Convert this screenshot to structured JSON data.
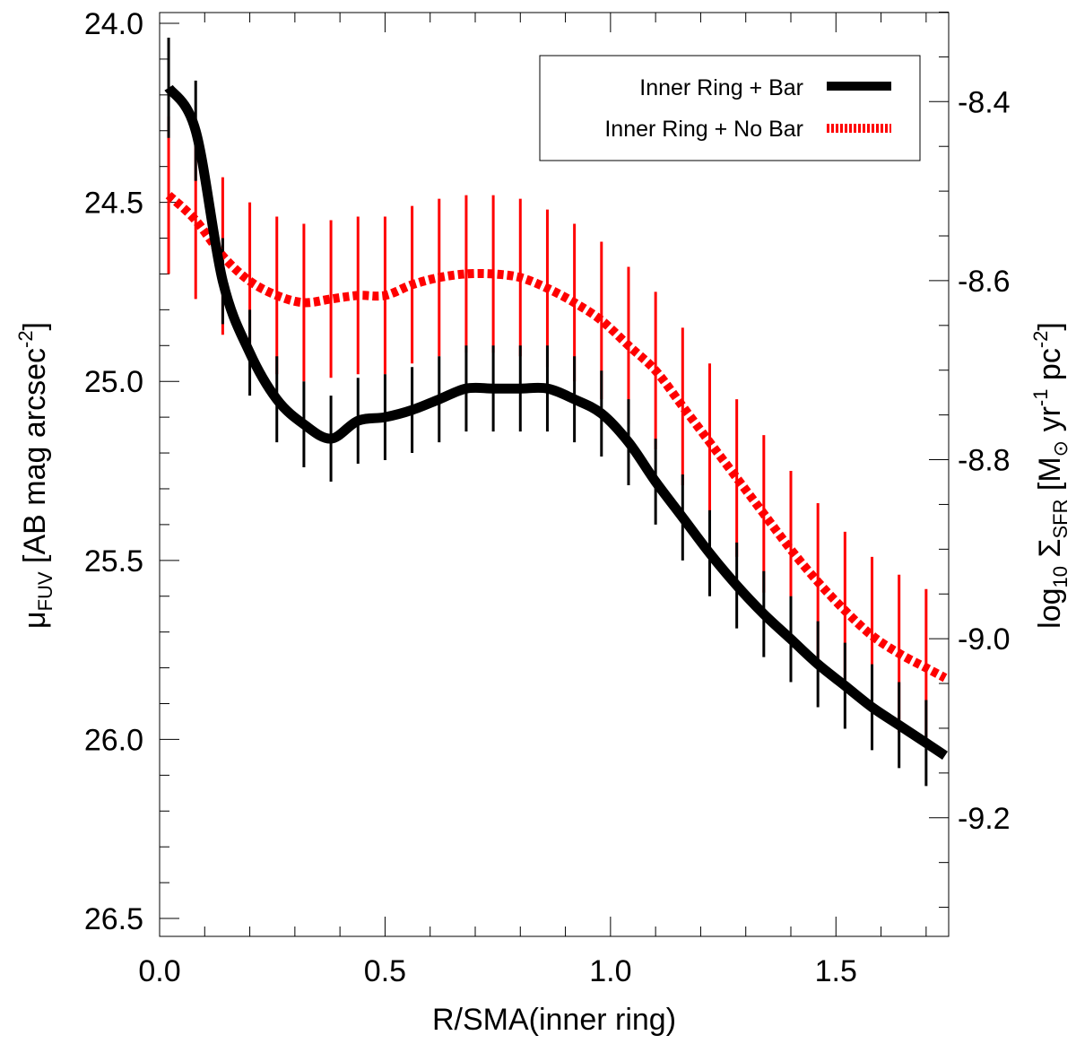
{
  "chart_data": {
    "type": "line",
    "xlabel": "R/SMA(inner ring)",
    "ylabel": {
      "base": "μ",
      "sub": "FUV",
      "text": " [AB mag arcsec",
      "sup": "-2",
      "close": "]"
    },
    "y2label": {
      "prefix": "log",
      "sub1": "10",
      "sigma": " Σ",
      "sub2": "SFR",
      "text1": " [M",
      "odot": "⊙",
      "text2": " yr",
      "sup1": "-1",
      "text3": " pc",
      "sup2": "-2",
      "close": "]"
    },
    "xlim": [
      0.0,
      1.75
    ],
    "ylim": [
      26.55,
      23.97
    ],
    "y2lim": [
      -9.3325,
      -8.3005
    ],
    "x_ticks": [
      "0.0",
      "0.5",
      "1.0",
      "1.5"
    ],
    "x_tick_values": [
      0.0,
      0.5,
      1.0,
      1.5
    ],
    "y_ticks": [
      "24.0",
      "24.5",
      "25.0",
      "25.5",
      "26.0",
      "26.5"
    ],
    "y_tick_values": [
      24.0,
      24.5,
      25.0,
      25.5,
      26.0,
      26.5
    ],
    "y2_ticks": [
      "-8.4",
      "-8.6",
      "-8.8",
      "-9.0",
      "-9.2"
    ],
    "y2_tick_values": [
      -8.4,
      -8.6,
      -8.8,
      -9.0,
      -9.2
    ],
    "series": [
      {
        "name": "Inner Ring + Bar",
        "color": "#000000",
        "style": "solid",
        "x": [
          0.02,
          0.08,
          0.14,
          0.2,
          0.26,
          0.32,
          0.38,
          0.44,
          0.5,
          0.56,
          0.62,
          0.68,
          0.74,
          0.8,
          0.86,
          0.92,
          0.98,
          1.04,
          1.1,
          1.16,
          1.22,
          1.28,
          1.34,
          1.4,
          1.46,
          1.52,
          1.58,
          1.64,
          1.7
        ],
        "y": [
          24.18,
          24.3,
          24.72,
          24.92,
          25.05,
          25.12,
          25.16,
          25.11,
          25.1,
          25.08,
          25.05,
          25.02,
          25.02,
          25.02,
          25.02,
          25.05,
          25.09,
          25.17,
          25.28,
          25.38,
          25.48,
          25.57,
          25.65,
          25.72,
          25.79,
          25.85,
          25.91,
          25.96,
          26.01
        ],
        "err": [
          0.14,
          0.14,
          0.12,
          0.12,
          0.12,
          0.12,
          0.12,
          0.12,
          0.12,
          0.12,
          0.12,
          0.12,
          0.12,
          0.12,
          0.12,
          0.12,
          0.12,
          0.12,
          0.12,
          0.12,
          0.12,
          0.12,
          0.12,
          0.12,
          0.12,
          0.12,
          0.12,
          0.12,
          0.12
        ]
      },
      {
        "name": "Inner Ring + No Bar",
        "color": "#ff0000",
        "style": "dashed",
        "x": [
          0.02,
          0.08,
          0.14,
          0.2,
          0.26,
          0.32,
          0.38,
          0.44,
          0.5,
          0.56,
          0.62,
          0.68,
          0.74,
          0.8,
          0.86,
          0.92,
          0.98,
          1.04,
          1.1,
          1.16,
          1.22,
          1.28,
          1.34,
          1.4,
          1.46,
          1.52,
          1.58,
          1.64,
          1.7
        ],
        "y": [
          24.48,
          24.55,
          24.65,
          24.72,
          24.76,
          24.78,
          24.77,
          24.76,
          24.76,
          24.73,
          24.71,
          24.7,
          24.7,
          24.71,
          24.74,
          24.78,
          24.83,
          24.9,
          24.97,
          25.07,
          25.17,
          25.27,
          25.37,
          25.47,
          25.56,
          25.64,
          25.71,
          25.76,
          25.8
        ],
        "err": [
          0.22,
          0.22,
          0.22,
          0.22,
          0.22,
          0.22,
          0.22,
          0.22,
          0.22,
          0.22,
          0.22,
          0.22,
          0.22,
          0.22,
          0.22,
          0.22,
          0.22,
          0.22,
          0.22,
          0.22,
          0.22,
          0.22,
          0.22,
          0.22,
          0.22,
          0.22,
          0.22,
          0.22,
          0.22
        ]
      }
    ],
    "legend": {
      "position": "top-right",
      "entries": [
        "Inner Ring + Bar",
        "Inner Ring + No Bar"
      ]
    }
  }
}
